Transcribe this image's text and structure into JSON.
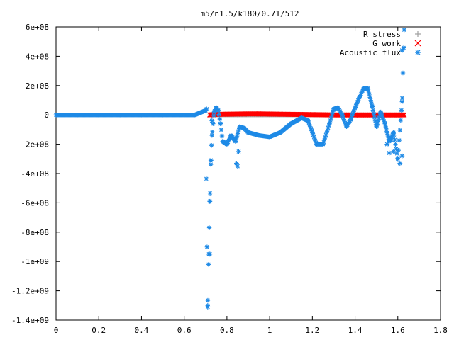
{
  "chart_data": {
    "type": "scatter",
    "title": "m5/n1.5/k180/0.71/512",
    "xlabel": "",
    "ylabel": "",
    "xlim": [
      0,
      1.8
    ],
    "ylim": [
      -1400000000,
      600000000
    ],
    "x_ticks": [
      0,
      0.2,
      0.4,
      0.6,
      0.8,
      1,
      1.2,
      1.4,
      1.6,
      1.8
    ],
    "x_tick_labels": [
      "0",
      "0.2",
      "0.4",
      "0.6",
      "0.8",
      "1",
      "1.2",
      "1.4",
      "1.6",
      "1.8"
    ],
    "y_ticks": [
      600000000,
      400000000,
      200000000,
      0,
      -200000000,
      -400000000,
      -600000000,
      -800000000,
      -1000000000,
      -1200000000,
      -1400000000
    ],
    "y_tick_labels": [
      "6e+08",
      "4e+08",
      "2e+08",
      "0",
      "-2e+08",
      "-4e+08",
      "-6e+08",
      "-8e+08",
      "-1e+09",
      "-1.2e+09",
      "-1.4e+09"
    ],
    "grid": false,
    "legend_position": "top-right",
    "series": [
      {
        "name": "R stress",
        "marker": "+",
        "color": "#a0a0a0",
        "x": [
          0.72,
          0.85,
          1.0,
          1.15,
          1.3,
          1.45,
          1.6
        ],
        "y": [
          0,
          0,
          0,
          0,
          0,
          0,
          0
        ]
      },
      {
        "name": "G work",
        "marker": "x",
        "color": "#ff0000",
        "x": [
          0.72,
          0.74,
          0.76,
          0.8,
          0.85,
          0.9,
          0.95,
          1.0,
          1.05,
          1.1,
          1.15,
          1.2,
          1.25,
          1.3,
          1.35,
          1.4,
          1.45,
          1.5,
          1.55,
          1.6,
          1.63
        ],
        "y": [
          0,
          3000000,
          4000000,
          5000000,
          6000000,
          7000000,
          7000000,
          6000000,
          5000000,
          4000000,
          3000000,
          2000000,
          1000000,
          0,
          0,
          0,
          0,
          0,
          0,
          0,
          0
        ]
      },
      {
        "name": "Acoustic flux",
        "marker": "*",
        "color": "#1e8ae6",
        "x": [
          0.0,
          0.1,
          0.2,
          0.3,
          0.4,
          0.5,
          0.6,
          0.65,
          0.7,
          0.71,
          0.715,
          0.72,
          0.725,
          0.73,
          0.74,
          0.75,
          0.76,
          0.77,
          0.78,
          0.8,
          0.82,
          0.84,
          0.86,
          0.88,
          0.9,
          0.95,
          1.0,
          1.05,
          1.1,
          1.15,
          1.18,
          1.2,
          1.22,
          1.25,
          1.28,
          1.3,
          1.32,
          1.34,
          1.36,
          1.38,
          1.4,
          1.42,
          1.44,
          1.46,
          1.48,
          1.5,
          1.52,
          1.54,
          1.56,
          1.58,
          1.6,
          1.62,
          1.63
        ],
        "y": [
          0,
          0,
          0,
          0,
          0,
          0,
          0,
          0,
          30000000,
          -1300000000,
          -950000000,
          -590000000,
          -310000000,
          -140000000,
          20000000,
          50000000,
          30000000,
          -60000000,
          -180000000,
          -200000000,
          -140000000,
          -180000000,
          -80000000,
          -90000000,
          -120000000,
          -140000000,
          -150000000,
          -120000000,
          -60000000,
          -20000000,
          -40000000,
          -120000000,
          -200000000,
          -200000000,
          -60000000,
          40000000,
          50000000,
          0,
          -80000000,
          -30000000,
          50000000,
          120000000,
          180000000,
          180000000,
          60000000,
          -80000000,
          20000000,
          -60000000,
          -180000000,
          -120000000,
          -300000000,
          90000000,
          580000000
        ]
      }
    ],
    "extra_scatter_points": {
      "acoustic_flux_x": [
        0.705,
        0.71,
        0.72,
        0.72,
        0.725,
        0.73,
        0.845,
        0.85,
        0.855,
        1.55,
        1.56,
        1.57,
        1.58,
        1.61,
        1.62,
        1.62
      ],
      "acoustic_flux_y": [
        40000000,
        -1310000000,
        -950000000,
        -590000000,
        -310000000,
        -40000000,
        -330000000,
        -350000000,
        -250000000,
        -200000000,
        -260000000,
        -170000000,
        -250000000,
        -330000000,
        -280000000,
        440000000
      ]
    }
  }
}
